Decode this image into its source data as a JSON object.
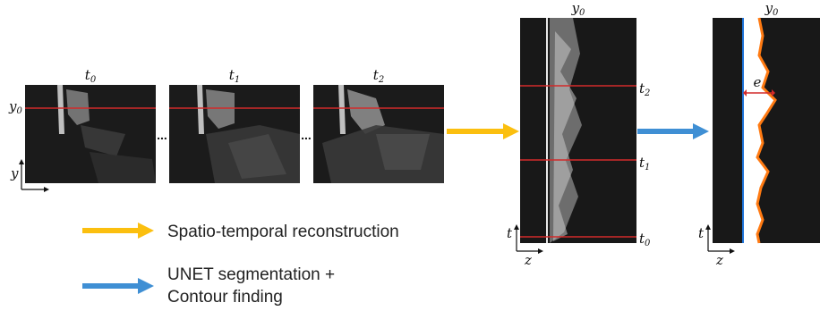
{
  "frames": [
    {
      "label": "t",
      "sub": "0"
    },
    {
      "label": "t",
      "sub": "1"
    },
    {
      "label": "t",
      "sub": "2"
    }
  ],
  "y0_left": {
    "label": "y",
    "sub": "0"
  },
  "y_axis_label": "y",
  "ellipsis": "...",
  "st_panel": {
    "top_label": {
      "label": "y",
      "sub": "0"
    },
    "time_labels": [
      {
        "label": "t",
        "sub": "2"
      },
      {
        "label": "t",
        "sub": "1"
      },
      {
        "label": "t",
        "sub": "0"
      }
    ],
    "t_axis": "t",
    "z_axis": "z"
  },
  "seg_panel": {
    "top_label": {
      "label": "y",
      "sub": "0"
    },
    "e_label": "e",
    "t_axis": "t",
    "z_axis": "z"
  },
  "legend": {
    "orange": "Spatio-temporal reconstruction",
    "blue_line1": "UNET segmentation +",
    "blue_line2": "Contour finding"
  },
  "colors": {
    "orange": "#fbbf0f",
    "blue": "#3f8fd4",
    "red": "#d22a2a",
    "contour": "#ff7a12",
    "interface": "#1e73d8",
    "dark": "#191919"
  }
}
